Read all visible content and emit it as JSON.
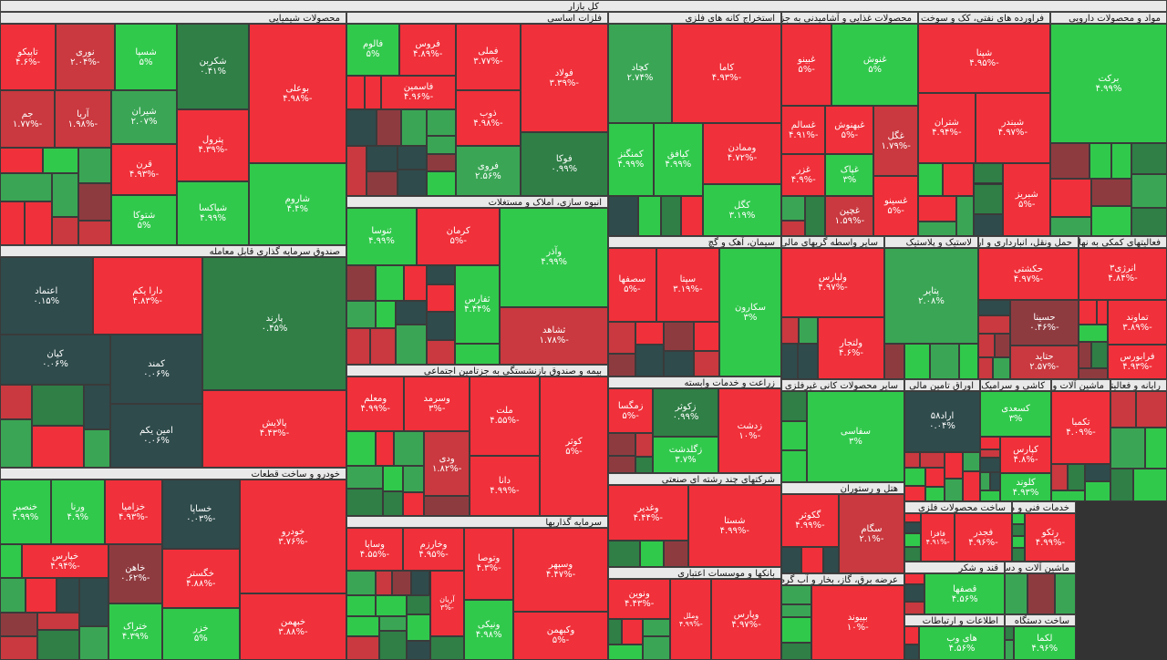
{
  "header": {
    "title": "کل بازار"
  },
  "sectors": [
    {
      "title": "محصولات شیمیایی",
      "tiles": [
        {
          "name": "بوعلی",
          "change": "-۴.۹۸%"
        },
        {
          "name": "شاروم",
          "change": "۴.۴%"
        },
        {
          "name": "شکربن",
          "change": "۰.۴۱%"
        },
        {
          "name": "پترول",
          "change": "-۴.۳۹%"
        },
        {
          "name": "شپاکسا",
          "change": "۴.۹۹%"
        },
        {
          "name": "شسپا",
          "change": "۵%"
        },
        {
          "name": "نوری",
          "change": "-۲.۰۴%"
        },
        {
          "name": "تاپیکو",
          "change": "-۴.۶%"
        },
        {
          "name": "شیران",
          "change": "۲.۰۷%"
        },
        {
          "name": "قرن",
          "change": "-۴.۹۳%"
        },
        {
          "name": "شتوکا",
          "change": "۵%"
        },
        {
          "name": "آریا",
          "change": "-۱.۹۸%"
        },
        {
          "name": "جم",
          "change": "-۱.۷۷%"
        }
      ]
    },
    {
      "title": "صندوق سرمایه گذاری قابل معامله",
      "tiles": [
        {
          "name": "پارند",
          "change": "۰.۴۵%"
        },
        {
          "name": "پالایش",
          "change": "-۴.۴۳%"
        },
        {
          "name": "دارا یکم",
          "change": "-۴.۸۳%"
        },
        {
          "name": "اعتماد",
          "change": "۰.۱۵%"
        },
        {
          "name": "کمند",
          "change": "۰.۰۶%"
        },
        {
          "name": "امین یکم",
          "change": "۰.۰۶%"
        },
        {
          "name": "کیان",
          "change": "۰.۰۶%"
        }
      ]
    },
    {
      "title": "خودرو و ساخت قطعات",
      "tiles": [
        {
          "name": "خودرو",
          "change": "-۳.۷۶%"
        },
        {
          "name": "خبهمن",
          "change": "-۳.۸۸%"
        },
        {
          "name": "خساپا",
          "change": "-۰.۰۳%"
        },
        {
          "name": "خگستر",
          "change": "-۴.۸۸%"
        },
        {
          "name": "خزر",
          "change": "۵%"
        },
        {
          "name": "خزامیا",
          "change": "-۴.۹۳%"
        },
        {
          "name": "ورنا",
          "change": "۴.۹%"
        },
        {
          "name": "خنصیر",
          "change": "۴.۹۹%"
        },
        {
          "name": "خاهن",
          "change": "-۰.۶۲%"
        },
        {
          "name": "ختراک",
          "change": "۴.۳۹%"
        },
        {
          "name": "خپارس",
          "change": "-۴.۹۴%"
        }
      ]
    },
    {
      "title": "فلزات اساسی",
      "tiles": [
        {
          "name": "فولاد",
          "change": "-۳.۳۹%"
        },
        {
          "name": "فوکا",
          "change": "۰.۹۹%"
        },
        {
          "name": "فملی",
          "change": "-۳.۷۷%"
        },
        {
          "name": "ذوب",
          "change": "-۴.۹۸%"
        },
        {
          "name": "فروی",
          "change": "۲.۵۶%"
        },
        {
          "name": "فروس",
          "change": "-۴.۸۹%"
        },
        {
          "name": "فالوم",
          "change": "۵%"
        },
        {
          "name": "فاسمین",
          "change": "-۴.۹۶%"
        }
      ]
    },
    {
      "title": "انبوه سازی، املاک و مستغلات",
      "tiles": [
        {
          "name": "وآذر",
          "change": "۴.۹۹%"
        },
        {
          "name": "ثشاهد",
          "change": "-۱.۷۸%"
        },
        {
          "name": "کرمان",
          "change": "-۵%"
        },
        {
          "name": "ثنوسا",
          "change": "۴.۹۹%"
        },
        {
          "name": "ثفارس",
          "change": "۴.۴۴%"
        }
      ]
    },
    {
      "title": "بیمه و صندوق بازنشستگی به جزتامین اجتماعی",
      "tiles": [
        {
          "name": "کوثر",
          "change": "-۵%"
        },
        {
          "name": "ملت",
          "change": "-۴.۵۵%"
        },
        {
          "name": "دانا",
          "change": "-۴.۹۹%"
        },
        {
          "name": "وسرمد",
          "change": "-۳%"
        },
        {
          "name": "ومعلم",
          "change": "-۴.۹۹%"
        },
        {
          "name": "ودی",
          "change": "-۱.۸۲%"
        }
      ]
    },
    {
      "title": "سرمایه گذاریها",
      "tiles": [
        {
          "name": "وسپهر",
          "change": "-۴.۴۷%"
        },
        {
          "name": "وکبهمن",
          "change": "-۵%"
        },
        {
          "name": "وتوصا",
          "change": "-۴.۳%"
        },
        {
          "name": "ونیکی",
          "change": "۴.۹۸%"
        },
        {
          "name": "وخارزم",
          "change": "-۴.۹۵%"
        },
        {
          "name": "وساپا",
          "change": "-۴.۵۵%"
        },
        {
          "name": "آریان",
          "change": "-۳%"
        }
      ]
    },
    {
      "title": "استخراج کانه های فلزی",
      "tiles": [
        {
          "name": "کاما",
          "change": "-۴.۹۳%"
        },
        {
          "name": "کچاد",
          "change": "۲.۷۴%"
        },
        {
          "name": "وممادن",
          "change": "-۴.۷۲%"
        },
        {
          "name": "کگل",
          "change": "۳.۱۹%"
        },
        {
          "name": "کیافق",
          "change": "۴.۹۹%"
        },
        {
          "name": "کمنگنز",
          "change": "۴.۹۹%"
        }
      ]
    },
    {
      "title": "سیمان، آهک و گچ",
      "tiles": [
        {
          "name": "سکارون",
          "change": "۳%"
        },
        {
          "name": "سپتا",
          "change": "-۳.۱۹%"
        },
        {
          "name": "سصفها",
          "change": "-۵%"
        }
      ]
    },
    {
      "title": "زراعت و خدمات وابسته",
      "tiles": [
        {
          "name": "زدشت",
          "change": "-۱۰%"
        },
        {
          "name": "زکوثر",
          "change": "۰.۹۹%"
        },
        {
          "name": "زگلدشت",
          "change": "۳.۷%"
        },
        {
          "name": "زمگسا",
          "change": "-۵%"
        }
      ]
    },
    {
      "title": "شرکتهای چند رشته ای صنعتی",
      "tiles": [
        {
          "name": "شستا",
          "change": "-۴.۹۹%"
        },
        {
          "name": "وغدیر",
          "change": "-۴.۴۴%"
        }
      ]
    },
    {
      "title": "بانکها و موسسات اعتباری",
      "tiles": [
        {
          "name": "وپارس",
          "change": "-۴.۹۷%"
        },
        {
          "name": "وملل",
          "change": "-۴.۹۹%"
        },
        {
          "name": "ونوین",
          "change": "-۴.۴۳%"
        }
      ]
    },
    {
      "title": "محصولات غذایی و آشامیدنی به جز قند و شکر",
      "tiles": [
        {
          "name": "غنوش",
          "change": "۵%"
        },
        {
          "name": "غبینو",
          "change": "-۵%"
        },
        {
          "name": "غگل",
          "change": "-۱.۷۹%"
        },
        {
          "name": "غسینو",
          "change": "-۵%"
        },
        {
          "name": "غبهنوش",
          "change": "-۵%"
        },
        {
          "name": "غسالم",
          "change": "-۴.۹۱%"
        },
        {
          "name": "غپاک",
          "change": "۳%"
        },
        {
          "name": "غچین",
          "change": "-۱.۵۹%"
        },
        {
          "name": "غزر",
          "change": "-۴.۹%"
        }
      ]
    },
    {
      "title": "فراورده های نفتی، کک و سوخت هسته ای",
      "tiles": [
        {
          "name": "شپنا",
          "change": "-۴.۹۵%"
        },
        {
          "name": "شبندر",
          "change": "-۴.۹۷%"
        },
        {
          "name": "شتران",
          "change": "-۴.۹۴%"
        },
        {
          "name": "شبریز",
          "change": "-۵%"
        }
      ]
    },
    {
      "title": "مواد و محصولات دارویی",
      "tiles": [
        {
          "name": "برکت",
          "change": "۴.۹۹%"
        }
      ]
    },
    {
      "title": "سایر واسطه گریهای مالی",
      "tiles": [
        {
          "name": "ولپارس",
          "change": "-۴.۹۷%"
        },
        {
          "name": "ولتجار",
          "change": "-۴.۶%"
        }
      ]
    },
    {
      "title": "لاستیک و پلاستیک",
      "tiles": [
        {
          "name": "پتایر",
          "change": "۲.۰۸%"
        }
      ]
    },
    {
      "title": "حمل ونقل، انبارداری و ارتباطات",
      "tiles": [
        {
          "name": "حکشتی",
          "change": "-۴.۹۷%"
        },
        {
          "name": "حسینا",
          "change": "-۰.۴۶%"
        },
        {
          "name": "حتاید",
          "change": "-۲.۵۷%"
        }
      ]
    },
    {
      "title": "فعالیتهای کمکی به نهادهای مالی",
      "tiles": [
        {
          "name": "انرژی۳",
          "change": "-۴.۸۴%"
        },
        {
          "name": "تماوند",
          "change": "-۳.۸۹%"
        },
        {
          "name": "فرابورس",
          "change": "-۴.۹۳%"
        }
      ]
    },
    {
      "title": "سایر محصولات کانی غیرفلزی",
      "tiles": [
        {
          "name": "سفاسی",
          "change": "۳%"
        }
      ]
    },
    {
      "title": "هتل و رستوران",
      "tiles": [
        {
          "name": "سگام",
          "change": "-۲.۱%"
        },
        {
          "name": "گکوثر",
          "change": "-۴.۹۹%"
        }
      ]
    },
    {
      "title": "عرضه برق، گاز، بخار و آب گرم",
      "tiles": [
        {
          "name": "بپیوند",
          "change": "-۱۰%"
        }
      ]
    },
    {
      "title": "اوراق تامین مالی",
      "tiles": [
        {
          "name": "اراد۵۸",
          "change": "۰.۰۴%"
        }
      ]
    },
    {
      "title": "کاشی و سرامیک",
      "tiles": [
        {
          "name": "کسعدی",
          "change": "۳%"
        },
        {
          "name": "کپارس",
          "change": "-۴.۸%"
        },
        {
          "name": "کلوند",
          "change": "۴.۹۳%"
        }
      ]
    },
    {
      "title": "ماشین آلات و تجهیزات",
      "tiles": [
        {
          "name": "تکمبا",
          "change": "-۴.۰۹%"
        }
      ]
    },
    {
      "title": "رایانه و فعالیتهای وابسته",
      "tiles": []
    },
    {
      "title": "ساخت محصولات فلزی",
      "tiles": [
        {
          "name": "فجدر",
          "change": "-۴.۹۶%"
        },
        {
          "name": "فافزا",
          "change": "-۴.۹۱%"
        }
      ]
    },
    {
      "title": "خدمات فنی و مهندسی",
      "tiles": [
        {
          "name": "رتکو",
          "change": "-۴.۹۹%"
        }
      ]
    },
    {
      "title": "قند و شکر",
      "tiles": [
        {
          "name": "قصفها",
          "change": "۴.۵۶%"
        }
      ]
    },
    {
      "title": "ماشین آلات و دستگاههای برقی",
      "tiles": []
    },
    {
      "title": "اطلاعات و ارتباطات",
      "tiles": [
        {
          "name": "های وب",
          "change": "۴.۵۶%"
        }
      ]
    },
    {
      "title": "ساخت دستگاه",
      "tiles": [
        {
          "name": "لکما",
          "change": "۴.۹۶%"
        }
      ]
    }
  ]
}
